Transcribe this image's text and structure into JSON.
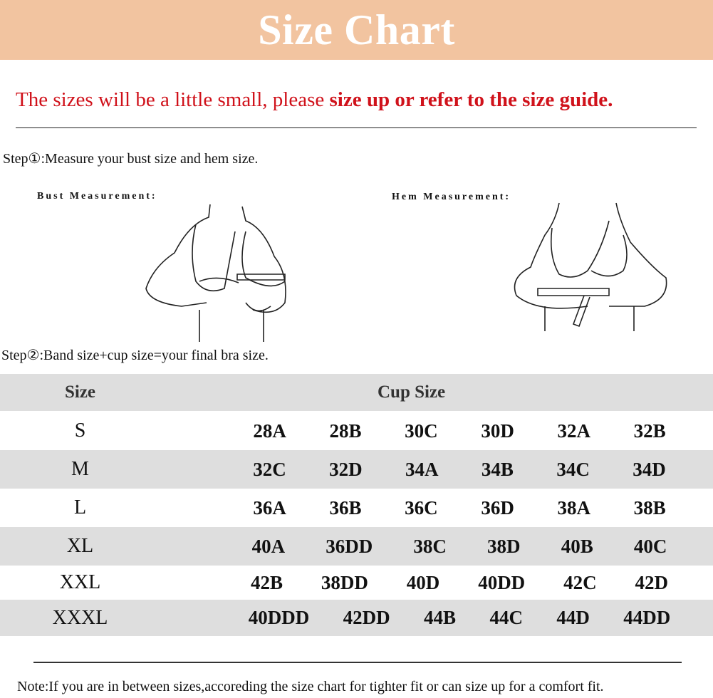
{
  "header": {
    "title": "Size Chart",
    "bg_color": "#f2c4a0"
  },
  "warning": {
    "normal": "The sizes will be a little small, please ",
    "bold": "size up or refer to the size guide.",
    "color": "#d0121b"
  },
  "step1": "Step①:Measure your bust size and hem size.",
  "bust_label": "Bust Measurement:",
  "hem_label": "Hem Measurement:",
  "step2": "Step②:Band size+cup size=your final bra size.",
  "table": {
    "headers": [
      "Size",
      "Cup Size"
    ],
    "rows": [
      {
        "size": "S",
        "cups": [
          "28A",
          "28B",
          "30C",
          "30D",
          "32A",
          "32B"
        ]
      },
      {
        "size": "M",
        "cups": [
          "32C",
          "32D",
          "34A",
          "34B",
          "34C",
          "34D"
        ]
      },
      {
        "size": "L",
        "cups": [
          "36A",
          "36B",
          "36C",
          "36D",
          "38A",
          "38B"
        ]
      },
      {
        "size": "XL",
        "cups": [
          "40A",
          "36DD",
          "38C",
          "38D",
          "40B",
          "40C"
        ]
      },
      {
        "size": "XXL",
        "cups": [
          "42B",
          "38DD",
          "40D",
          "40DD",
          "42C",
          "42D"
        ]
      },
      {
        "size": "XXXL",
        "cups": [
          "40DDD",
          "42DD",
          "44B",
          "44C",
          "44D",
          "44DD"
        ]
      }
    ]
  },
  "note": "Note:If you are in between sizes,accoreding the size  chart for tighter fit or can size up for a comfort fit."
}
